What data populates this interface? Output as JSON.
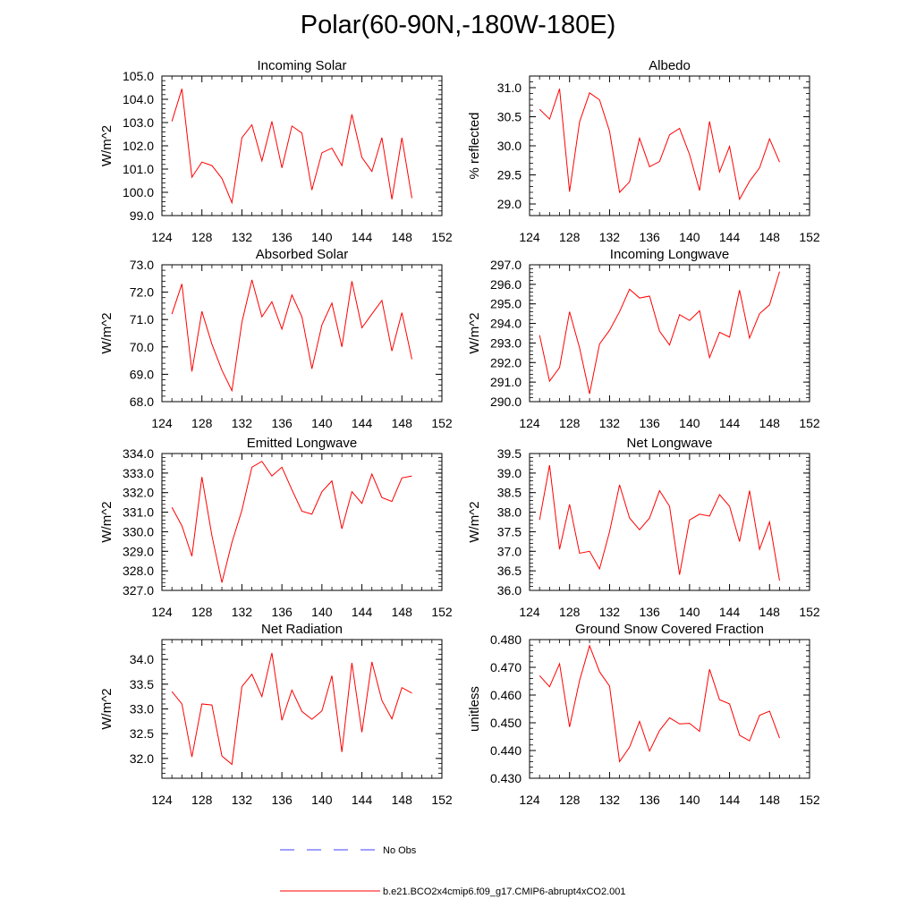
{
  "title": "Polar(60-90N,-180W-180E)",
  "colors": {
    "model": "#ff0000",
    "obs": "#3f3fff",
    "axis": "#000000"
  },
  "legend": {
    "obs_label": "No Obs",
    "model_label": "b.e21.BCO2x4cmip6.f09_g17.CMIP6-abrupt4xCO2.001"
  },
  "chart_data": [
    {
      "type": "line",
      "title": "Incoming Solar",
      "ylabel": "W/m^2",
      "xlim": [
        124,
        152
      ],
      "xticks": [
        124,
        128,
        132,
        136,
        140,
        144,
        148,
        152
      ],
      "ylim": [
        99.0,
        105.0
      ],
      "yticks": [
        99.0,
        100.0,
        101.0,
        102.0,
        103.0,
        104.0,
        105.0
      ],
      "ydec": 1,
      "x": [
        125,
        126,
        127,
        128,
        129,
        130,
        131,
        132,
        133,
        134,
        135,
        136,
        137,
        138,
        139,
        140,
        141,
        142,
        143,
        144,
        145,
        146,
        147,
        148,
        149
      ],
      "series": [
        {
          "name": "b.e21.BCO2x4cmip6.f09_g17.CMIP6-abrupt4xCO2.001",
          "values": [
            103.05,
            104.45,
            100.65,
            101.3,
            101.15,
            100.6,
            99.55,
            102.35,
            102.9,
            101.35,
            103.05,
            101.05,
            102.85,
            102.55,
            100.1,
            101.7,
            101.9,
            101.15,
            103.35,
            101.5,
            100.9,
            102.35,
            99.7,
            102.35,
            99.75
          ]
        }
      ]
    },
    {
      "type": "line",
      "title": "Albedo",
      "ylabel": "% reflected",
      "xlim": [
        124,
        152
      ],
      "xticks": [
        124,
        128,
        132,
        136,
        140,
        144,
        148,
        152
      ],
      "ylim": [
        28.8,
        31.2
      ],
      "yticks": [
        29.0,
        29.5,
        30.0,
        30.5,
        31.0
      ],
      "ydec": 1,
      "x": [
        125,
        126,
        127,
        128,
        129,
        130,
        131,
        132,
        133,
        134,
        135,
        136,
        137,
        138,
        139,
        140,
        141,
        142,
        143,
        144,
        145,
        146,
        147,
        148,
        149
      ],
      "series": [
        {
          "name": "b.e21.BCO2x4cmip6.f09_g17.CMIP6-abrupt4xCO2.001",
          "values": [
            30.63,
            30.46,
            30.98,
            29.21,
            30.41,
            30.91,
            30.79,
            30.25,
            29.2,
            29.38,
            30.13,
            29.64,
            29.73,
            30.19,
            30.3,
            29.85,
            29.23,
            30.42,
            29.55,
            29.99,
            29.08,
            29.39,
            29.62,
            30.12,
            29.72
          ]
        }
      ]
    },
    {
      "type": "line",
      "title": "Absorbed Solar",
      "ylabel": "W/m^2",
      "xlim": [
        124,
        152
      ],
      "xticks": [
        124,
        128,
        132,
        136,
        140,
        144,
        148,
        152
      ],
      "ylim": [
        68.0,
        73.0
      ],
      "yticks": [
        68.0,
        69.0,
        70.0,
        71.0,
        72.0,
        73.0
      ],
      "ydec": 1,
      "x": [
        125,
        126,
        127,
        128,
        129,
        130,
        131,
        132,
        133,
        134,
        135,
        136,
        137,
        138,
        139,
        140,
        141,
        142,
        143,
        144,
        145,
        146,
        147,
        148,
        149
      ],
      "series": [
        {
          "name": "b.e21.BCO2x4cmip6.f09_g17.CMIP6-abrupt4xCO2.001",
          "values": [
            71.2,
            72.3,
            69.1,
            71.3,
            70.1,
            69.15,
            68.4,
            70.9,
            72.45,
            71.1,
            71.65,
            70.65,
            71.9,
            71.1,
            69.2,
            70.8,
            71.6,
            70.0,
            72.4,
            70.7,
            71.2,
            71.7,
            69.85,
            71.25,
            69.55
          ]
        }
      ]
    },
    {
      "type": "line",
      "title": "Incoming Longwave",
      "ylabel": "W/m^2",
      "xlim": [
        124,
        152
      ],
      "xticks": [
        124,
        128,
        132,
        136,
        140,
        144,
        148,
        152
      ],
      "ylim": [
        290.0,
        297.0
      ],
      "yticks": [
        290.0,
        291.0,
        292.0,
        293.0,
        294.0,
        295.0,
        296.0,
        297.0
      ],
      "ydec": 1,
      "x": [
        125,
        126,
        127,
        128,
        129,
        130,
        131,
        132,
        133,
        134,
        135,
        136,
        137,
        138,
        139,
        140,
        141,
        142,
        143,
        144,
        145,
        146,
        147,
        148,
        149
      ],
      "series": [
        {
          "name": "b.e21.BCO2x4cmip6.f09_g17.CMIP6-abrupt4xCO2.001",
          "values": [
            293.4,
            291.05,
            291.75,
            294.6,
            292.75,
            290.4,
            292.95,
            293.65,
            294.6,
            295.75,
            295.3,
            295.4,
            293.6,
            292.9,
            294.45,
            294.15,
            294.65,
            292.25,
            293.55,
            293.3,
            295.7,
            293.25,
            294.5,
            294.95,
            296.65
          ]
        }
      ]
    },
    {
      "type": "line",
      "title": "Emitted Longwave",
      "ylabel": "W/m^2",
      "xlim": [
        124,
        152
      ],
      "xticks": [
        124,
        128,
        132,
        136,
        140,
        144,
        148,
        152
      ],
      "ylim": [
        327.0,
        334.0
      ],
      "yticks": [
        327.0,
        328.0,
        329.0,
        330.0,
        331.0,
        332.0,
        333.0,
        334.0
      ],
      "ydec": 1,
      "x": [
        125,
        126,
        127,
        128,
        129,
        130,
        131,
        132,
        133,
        134,
        135,
        136,
        137,
        138,
        139,
        140,
        141,
        142,
        143,
        144,
        145,
        146,
        147,
        148,
        149
      ],
      "series": [
        {
          "name": "b.e21.BCO2x4cmip6.f09_g17.CMIP6-abrupt4xCO2.001",
          "values": [
            331.25,
            330.3,
            328.75,
            332.8,
            329.8,
            327.4,
            329.45,
            331.1,
            333.3,
            333.6,
            332.85,
            333.3,
            332.15,
            331.05,
            330.9,
            332.05,
            332.6,
            330.15,
            332.05,
            331.45,
            332.95,
            331.75,
            331.55,
            332.75,
            332.85
          ]
        }
      ]
    },
    {
      "type": "line",
      "title": "Net Longwave",
      "ylabel": "W/m^2",
      "xlim": [
        124,
        152
      ],
      "xticks": [
        124,
        128,
        132,
        136,
        140,
        144,
        148,
        152
      ],
      "ylim": [
        36.0,
        39.5
      ],
      "yticks": [
        36.0,
        36.5,
        37.0,
        37.5,
        38.0,
        38.5,
        39.0,
        39.5
      ],
      "ydec": 1,
      "x": [
        125,
        126,
        127,
        128,
        129,
        130,
        131,
        132,
        133,
        134,
        135,
        136,
        137,
        138,
        139,
        140,
        141,
        142,
        143,
        144,
        145,
        146,
        147,
        148,
        149
      ],
      "series": [
        {
          "name": "b.e21.BCO2x4cmip6.f09_g17.CMIP6-abrupt4xCO2.001",
          "values": [
            37.8,
            39.2,
            37.05,
            38.2,
            36.95,
            37.0,
            36.55,
            37.5,
            38.7,
            37.85,
            37.55,
            37.85,
            38.55,
            38.15,
            36.4,
            37.8,
            37.95,
            37.9,
            38.45,
            38.15,
            37.25,
            38.55,
            37.05,
            37.75,
            36.25
          ]
        }
      ]
    },
    {
      "type": "line",
      "title": "Net Radiation",
      "ylabel": "W/m^2",
      "xlim": [
        124,
        152
      ],
      "xticks": [
        124,
        128,
        132,
        136,
        140,
        144,
        148,
        152
      ],
      "ylim": [
        31.6,
        34.4
      ],
      "yticks": [
        32.0,
        32.5,
        33.0,
        33.5,
        34.0
      ],
      "ydec": 1,
      "x": [
        125,
        126,
        127,
        128,
        129,
        130,
        131,
        132,
        133,
        134,
        135,
        136,
        137,
        138,
        139,
        140,
        141,
        142,
        143,
        144,
        145,
        146,
        147,
        148,
        149
      ],
      "series": [
        {
          "name": "b.e21.BCO2x4cmip6.f09_g17.CMIP6-abrupt4xCO2.001",
          "values": [
            33.35,
            33.1,
            32.03,
            33.1,
            33.08,
            32.05,
            31.88,
            33.45,
            33.7,
            33.25,
            34.13,
            32.77,
            33.38,
            32.95,
            32.79,
            32.96,
            33.67,
            32.13,
            33.93,
            32.53,
            33.95,
            33.17,
            32.8,
            33.43,
            33.32
          ]
        }
      ]
    },
    {
      "type": "line",
      "title": "Ground Snow Covered Fraction",
      "ylabel": "unitless",
      "xlim": [
        124,
        152
      ],
      "xticks": [
        124,
        128,
        132,
        136,
        140,
        144,
        148,
        152
      ],
      "ylim": [
        0.43,
        0.48
      ],
      "yticks": [
        0.43,
        0.44,
        0.45,
        0.46,
        0.47,
        0.48
      ],
      "ydec": 3,
      "x": [
        125,
        126,
        127,
        128,
        129,
        130,
        131,
        132,
        133,
        134,
        135,
        136,
        137,
        138,
        139,
        140,
        141,
        142,
        143,
        144,
        145,
        146,
        147,
        148,
        149
      ],
      "series": [
        {
          "name": "b.e21.BCO2x4cmip6.f09_g17.CMIP6-abrupt4xCO2.001",
          "values": [
            0.467,
            0.463,
            0.4713,
            0.4485,
            0.4652,
            0.4778,
            0.4684,
            0.4632,
            0.436,
            0.4412,
            0.4505,
            0.4398,
            0.4472,
            0.4518,
            0.4496,
            0.4498,
            0.4469,
            0.4693,
            0.4583,
            0.4568,
            0.4455,
            0.4435,
            0.4527,
            0.4542,
            0.4445
          ]
        }
      ]
    }
  ]
}
